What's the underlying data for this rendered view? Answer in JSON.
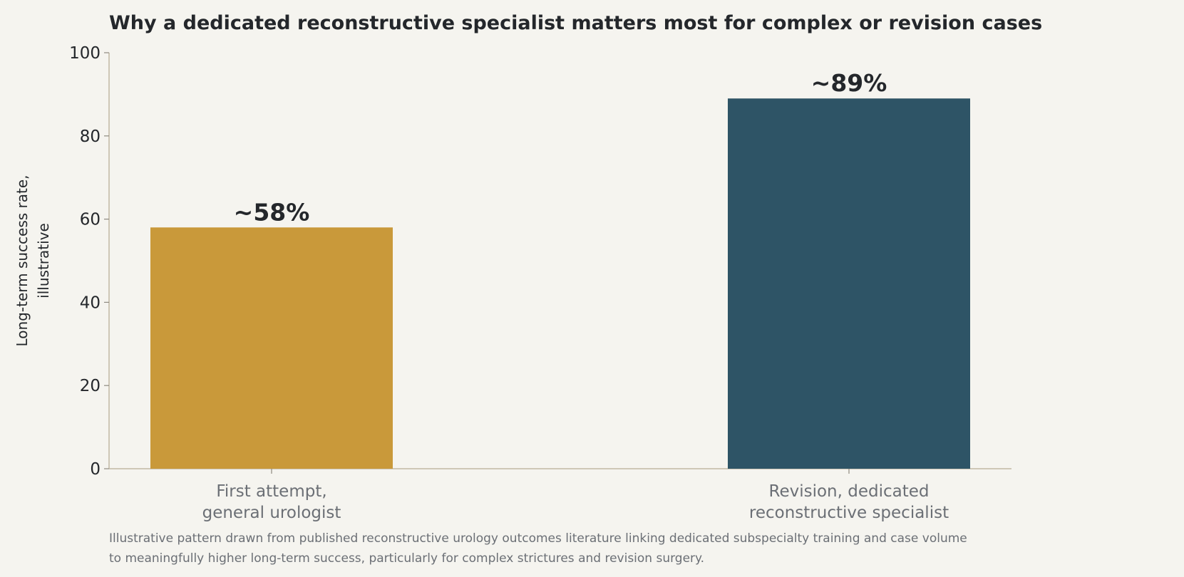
{
  "chart_data": {
    "type": "bar",
    "title": "Why a dedicated reconstructive specialist matters most for complex or revision cases",
    "ylabel": [
      "Long-term success rate,",
      "illustrative"
    ],
    "xlabel": "",
    "categories": [
      [
        "First attempt,",
        "general urologist"
      ],
      [
        "Revision, dedicated",
        "reconstructive specialist"
      ]
    ],
    "values": [
      58,
      89
    ],
    "value_labels": [
      "~58%",
      "~89%"
    ],
    "colors": [
      "#c9993a",
      "#2e5466"
    ],
    "ylim": [
      0,
      100
    ],
    "yticks": [
      0,
      20,
      40,
      60,
      80,
      100
    ],
    "grid": false,
    "legend": "none"
  },
  "footnote": {
    "lines": [
      "Illustrative pattern drawn from published reconstructive urology outcomes literature linking dedicated subspecialty training and case volume",
      "to meaningfully higher long-term success, particularly for complex strictures and revision surgery."
    ]
  }
}
